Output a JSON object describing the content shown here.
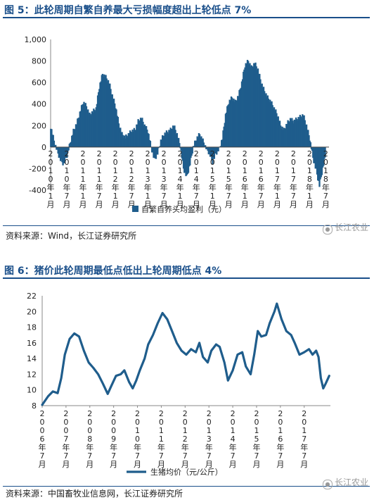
{
  "figure1": {
    "title": "图 5：此轮周期自繁自养最大亏损幅度超出上轮低点 7%",
    "source": "资料来源：Wind，长江证券研究所",
    "watermark": "长江农业",
    "chart_data": {
      "type": "bar",
      "ylim": [
        -400,
        1000
      ],
      "yticks": [
        "1,000",
        "800",
        "600",
        "400",
        "200",
        "0",
        "-200",
        "-400"
      ],
      "ytick_values": [
        1000,
        800,
        600,
        400,
        200,
        0,
        -200,
        -400
      ],
      "xticks": [
        "2010年1月",
        "2010年7月",
        "2011年1月",
        "2011年7月",
        "2012年1月",
        "2012年7月",
        "2013年1月",
        "2013年7月",
        "2014年1月",
        "2014年7月",
        "2015年1月",
        "2015年7月",
        "2016年1月",
        "2016年7月",
        "2017年1月",
        "2017年7月",
        "2018年1月",
        "2018年7月"
      ],
      "series": [
        {
          "name": "自繁自养头均盈利（元）",
          "color": "#1f5d8c",
          "points": [
            [
              2010.0,
              190
            ],
            [
              2010.1,
              60
            ],
            [
              2010.2,
              -40
            ],
            [
              2010.3,
              -120
            ],
            [
              2010.4,
              -160
            ],
            [
              2010.5,
              -80
            ],
            [
              2010.6,
              40
            ],
            [
              2010.7,
              150
            ],
            [
              2010.8,
              220
            ],
            [
              2010.9,
              320
            ],
            [
              2011.0,
              420
            ],
            [
              2011.1,
              380
            ],
            [
              2011.2,
              300
            ],
            [
              2011.3,
              330
            ],
            [
              2011.4,
              360
            ],
            [
              2011.5,
              560
            ],
            [
              2011.6,
              680
            ],
            [
              2011.7,
              650
            ],
            [
              2011.8,
              600
            ],
            [
              2011.9,
              480
            ],
            [
              2012.0,
              380
            ],
            [
              2012.1,
              220
            ],
            [
              2012.2,
              120
            ],
            [
              2012.3,
              90
            ],
            [
              2012.4,
              120
            ],
            [
              2012.5,
              150
            ],
            [
              2012.6,
              160
            ],
            [
              2012.7,
              240
            ],
            [
              2012.8,
              270
            ],
            [
              2012.9,
              200
            ],
            [
              2013.0,
              150
            ],
            [
              2013.1,
              0
            ],
            [
              2013.2,
              -120
            ],
            [
              2013.3,
              -60
            ],
            [
              2013.4,
              60
            ],
            [
              2013.5,
              120
            ],
            [
              2013.6,
              140
            ],
            [
              2013.7,
              160
            ],
            [
              2013.8,
              200
            ],
            [
              2013.9,
              120
            ],
            [
              2014.0,
              10
            ],
            [
              2014.1,
              -200
            ],
            [
              2014.2,
              -280
            ],
            [
              2014.3,
              -160
            ],
            [
              2014.4,
              0
            ],
            [
              2014.5,
              80
            ],
            [
              2014.6,
              120
            ],
            [
              2014.7,
              60
            ],
            [
              2014.8,
              -10
            ],
            [
              2014.9,
              -60
            ],
            [
              2015.0,
              -140
            ],
            [
              2015.1,
              -60
            ],
            [
              2015.2,
              -20
            ],
            [
              2015.3,
              80
            ],
            [
              2015.4,
              300
            ],
            [
              2015.5,
              420
            ],
            [
              2015.6,
              460
            ],
            [
              2015.7,
              420
            ],
            [
              2015.8,
              480
            ],
            [
              2015.9,
              600
            ],
            [
              2016.0,
              760
            ],
            [
              2016.1,
              800
            ],
            [
              2016.2,
              740
            ],
            [
              2016.3,
              780
            ],
            [
              2016.4,
              720
            ],
            [
              2016.5,
              600
            ],
            [
              2016.6,
              520
            ],
            [
              2016.7,
              460
            ],
            [
              2016.8,
              420
            ],
            [
              2016.9,
              360
            ],
            [
              2017.0,
              300
            ],
            [
              2017.1,
              200
            ],
            [
              2017.2,
              160
            ],
            [
              2017.3,
              220
            ],
            [
              2017.4,
              260
            ],
            [
              2017.5,
              240
            ],
            [
              2017.6,
              260
            ],
            [
              2017.7,
              280
            ],
            [
              2017.8,
              300
            ],
            [
              2017.9,
              200
            ],
            [
              2018.0,
              80
            ],
            [
              2018.1,
              -100
            ],
            [
              2018.2,
              -220
            ],
            [
              2018.3,
              -360
            ],
            [
              2018.4,
              -200
            ],
            [
              2018.5,
              -60
            ]
          ]
        }
      ]
    }
  },
  "figure2": {
    "title": "图 6：猪价此轮周期最低点低出上轮周期低点 4%",
    "source": "资料来源：中国畜牧业信息网，长江证券研究所",
    "watermark": "长江农业",
    "chart_data": {
      "type": "line",
      "ylim": [
        8,
        22
      ],
      "yticks": [
        "22",
        "20",
        "18",
        "16",
        "14",
        "12",
        "10",
        "8"
      ],
      "ytick_values": [
        22,
        20,
        18,
        16,
        14,
        12,
        10,
        8
      ],
      "xticks": [
        "2006年7月",
        "2007年7月",
        "2008年7月",
        "2009年7月",
        "2010年7月",
        "2011年7月",
        "2012年7月",
        "2013年7月",
        "2014年7月",
        "2015年7月",
        "2016年7月",
        "2017年7月"
      ],
      "series": [
        {
          "name": "生猪均价（元/公斤）",
          "color": "#1f5d8c",
          "points": [
            [
              2006.5,
              8.1
            ],
            [
              2006.75,
              9.2
            ],
            [
              2006.95,
              9.8
            ],
            [
              2007.15,
              9.6
            ],
            [
              2007.3,
              11.5
            ],
            [
              2007.45,
              14.5
            ],
            [
              2007.65,
              16.5
            ],
            [
              2007.85,
              17.2
            ],
            [
              2008.05,
              16.8
            ],
            [
              2008.25,
              15.0
            ],
            [
              2008.45,
              13.5
            ],
            [
              2008.65,
              12.8
            ],
            [
              2008.85,
              12.0
            ],
            [
              2009.05,
              10.8
            ],
            [
              2009.25,
              9.5
            ],
            [
              2009.4,
              10.5
            ],
            [
              2009.6,
              11.8
            ],
            [
              2009.8,
              12.0
            ],
            [
              2009.95,
              12.5
            ],
            [
              2010.15,
              11.0
            ],
            [
              2010.3,
              10.2
            ],
            [
              2010.45,
              11.2
            ],
            [
              2010.6,
              12.5
            ],
            [
              2010.8,
              14.0
            ],
            [
              2010.95,
              15.8
            ],
            [
              2011.15,
              17.0
            ],
            [
              2011.35,
              18.5
            ],
            [
              2011.55,
              19.8
            ],
            [
              2011.75,
              19.0
            ],
            [
              2011.95,
              17.5
            ],
            [
              2012.15,
              16.0
            ],
            [
              2012.35,
              15.0
            ],
            [
              2012.55,
              14.5
            ],
            [
              2012.75,
              15.2
            ],
            [
              2012.95,
              14.8
            ],
            [
              2013.1,
              16.0
            ],
            [
              2013.25,
              14.2
            ],
            [
              2013.45,
              13.5
            ],
            [
              2013.6,
              15.0
            ],
            [
              2013.8,
              15.8
            ],
            [
              2013.95,
              15.5
            ],
            [
              2014.15,
              13.5
            ],
            [
              2014.3,
              11.2
            ],
            [
              2014.5,
              12.5
            ],
            [
              2014.7,
              14.5
            ],
            [
              2014.9,
              14.8
            ],
            [
              2015.05,
              13.0
            ],
            [
              2015.25,
              12.0
            ],
            [
              2015.4,
              14.5
            ],
            [
              2015.55,
              17.5
            ],
            [
              2015.7,
              16.8
            ],
            [
              2015.9,
              17.0
            ],
            [
              2016.05,
              18.5
            ],
            [
              2016.25,
              20.0
            ],
            [
              2016.35,
              21.0
            ],
            [
              2016.55,
              19.0
            ],
            [
              2016.75,
              17.5
            ],
            [
              2016.95,
              17.0
            ],
            [
              2017.1,
              16.0
            ],
            [
              2017.3,
              14.5
            ],
            [
              2017.5,
              14.8
            ],
            [
              2017.7,
              15.2
            ],
            [
              2017.85,
              14.5
            ],
            [
              2018.0,
              15.0
            ],
            [
              2018.1,
              14.2
            ],
            [
              2018.2,
              11.5
            ],
            [
              2018.3,
              10.2
            ],
            [
              2018.4,
              10.8
            ],
            [
              2018.55,
              11.8
            ]
          ]
        }
      ]
    }
  }
}
